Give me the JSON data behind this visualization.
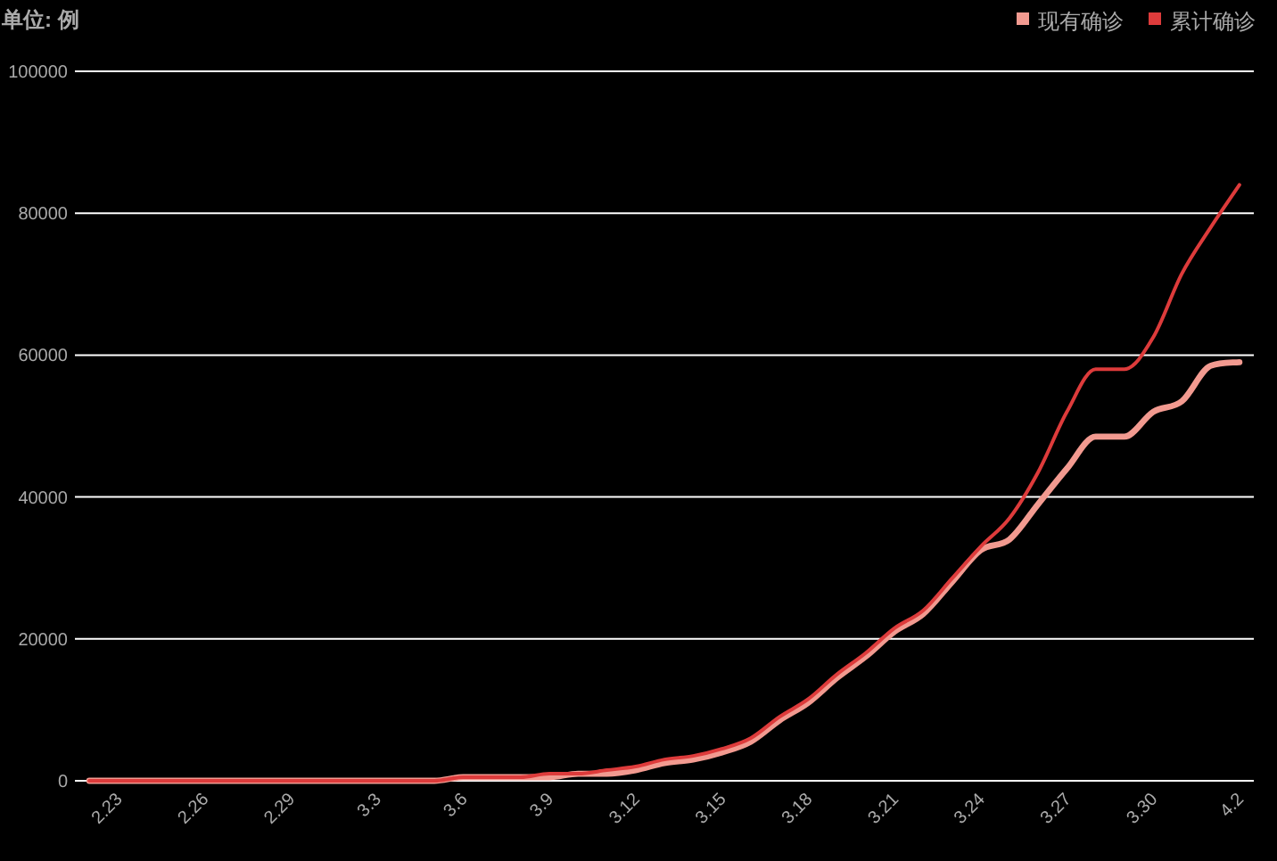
{
  "chart_data": {
    "type": "line",
    "ylabel": "单位: 例",
    "categories": [
      null,
      "2.23",
      null,
      null,
      "2.26",
      null,
      null,
      "2.29",
      null,
      null,
      "3.3",
      null,
      null,
      "3.6",
      null,
      null,
      "3.9",
      null,
      null,
      "3.12",
      null,
      null,
      "3.15",
      null,
      null,
      "3.18",
      null,
      null,
      "3.21",
      null,
      null,
      "3.24",
      null,
      null,
      "3.27",
      null,
      null,
      "3.30",
      null,
      null,
      "4.2"
    ],
    "series": [
      {
        "name": "现有确诊",
        "color": "#f29a90",
        "values": [
          0,
          0,
          0,
          0,
          0,
          0,
          0,
          0,
          0,
          0,
          0,
          0,
          0,
          500,
          500,
          500,
          500,
          1000,
          1000,
          1500,
          2500,
          3000,
          4000,
          5500,
          8500,
          11000,
          14500,
          17500,
          21000,
          23500,
          28000,
          32500,
          34000,
          39000,
          44000,
          48500,
          48500,
          52000,
          53500,
          58500,
          59000
        ]
      },
      {
        "name": "累计确诊",
        "color": "#dd3b3b",
        "values": [
          0,
          0,
          0,
          0,
          0,
          0,
          0,
          0,
          0,
          0,
          0,
          0,
          0,
          500,
          500,
          500,
          1000,
          1000,
          1500,
          2000,
          3000,
          3500,
          4500,
          6000,
          9000,
          11500,
          15000,
          18000,
          21500,
          24000,
          28500,
          33000,
          37000,
          43500,
          52000,
          58000,
          58000,
          62500,
          71500,
          78000,
          84000
        ]
      }
    ],
    "ylim": [
      0,
      100000
    ],
    "yticks": [
      0,
      20000,
      40000,
      60000,
      80000,
      100000
    ],
    "grid": "y",
    "legend": "top right"
  }
}
